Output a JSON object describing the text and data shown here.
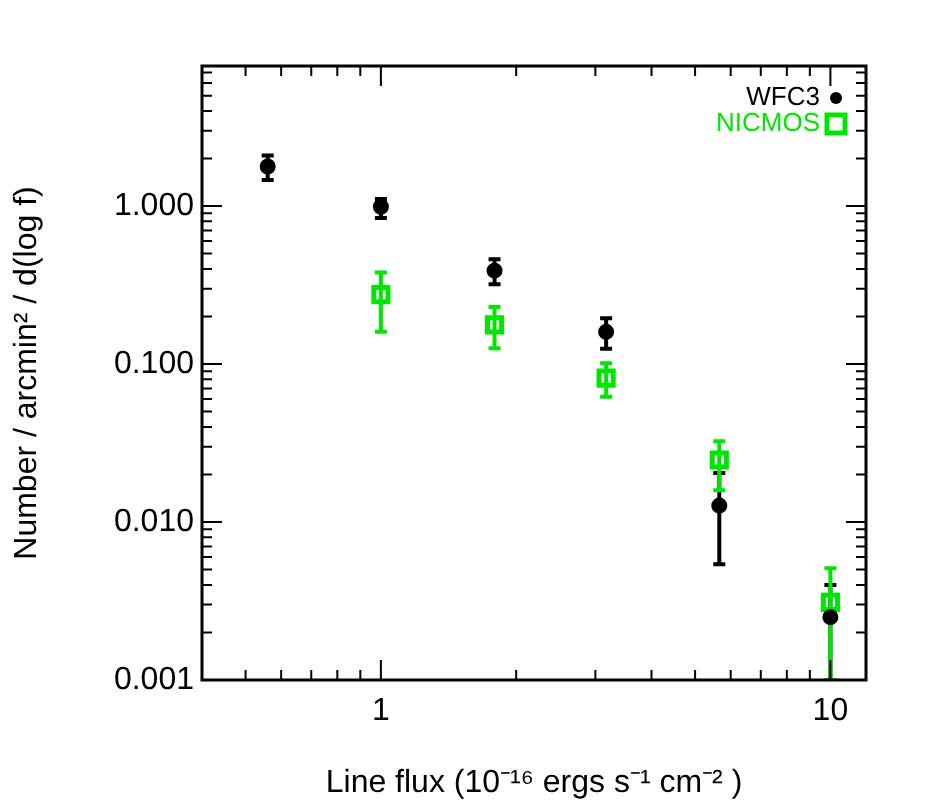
{
  "chart_data": {
    "type": "scatter",
    "xlabel": "Line flux (10⁻¹⁶ ergs s⁻¹ cm⁻² )",
    "ylabel": "Number / arcmin² / d(log f)",
    "log": "xy",
    "grid": false,
    "legend": "top right",
    "xlim": [
      0.4,
      12
    ],
    "ylim": [
      0.001,
      7.7
    ],
    "xticks": [
      {
        "value": 0.4,
        "label": null
      },
      {
        "value": 0.5,
        "label": null
      },
      {
        "value": 0.6,
        "label": null
      },
      {
        "value": 0.7,
        "label": null
      },
      {
        "value": 0.8,
        "label": null
      },
      {
        "value": 0.9,
        "label": null
      },
      1,
      {
        "value": 2,
        "label": null
      },
      {
        "value": 3,
        "label": null
      },
      {
        "value": 4,
        "label": null
      },
      {
        "value": 5,
        "label": null
      },
      {
        "value": 6,
        "label": null
      },
      {
        "value": 7,
        "label": null
      },
      {
        "value": 8,
        "label": null
      },
      {
        "value": 9,
        "label": null
      },
      10
    ],
    "yticks": [
      {
        "value": 0.001,
        "label": "0.001"
      },
      {
        "value": 0.002,
        "label": null
      },
      {
        "value": 0.003,
        "label": null
      },
      {
        "value": 0.004,
        "label": null
      },
      {
        "value": 0.005,
        "label": null
      },
      {
        "value": 0.006,
        "label": null
      },
      {
        "value": 0.007,
        "label": null
      },
      {
        "value": 0.008,
        "label": null
      },
      {
        "value": 0.009,
        "label": null
      },
      {
        "value": 0.01,
        "label": "0.010"
      },
      {
        "value": 0.02,
        "label": null
      },
      {
        "value": 0.03,
        "label": null
      },
      {
        "value": 0.04,
        "label": null
      },
      {
        "value": 0.05,
        "label": null
      },
      {
        "value": 0.06,
        "label": null
      },
      {
        "value": 0.07,
        "label": null
      },
      {
        "value": 0.08,
        "label": null
      },
      {
        "value": 0.09,
        "label": null
      },
      {
        "value": 0.1,
        "label": "0.100"
      },
      {
        "value": 0.2,
        "label": null
      },
      {
        "value": 0.3,
        "label": null
      },
      {
        "value": 0.4,
        "label": null
      },
      {
        "value": 0.5,
        "label": null
      },
      {
        "value": 0.6,
        "label": null
      },
      {
        "value": 0.7,
        "label": null
      },
      {
        "value": 0.8,
        "label": null
      },
      {
        "value": 0.9,
        "label": null
      },
      {
        "value": 1,
        "label": "1.000"
      },
      {
        "value": 2,
        "label": null
      },
      {
        "value": 3,
        "label": null
      },
      {
        "value": 4,
        "label": null
      },
      {
        "value": 5,
        "label": null
      },
      {
        "value": 6,
        "label": null
      },
      {
        "value": 7,
        "label": null
      }
    ],
    "series": [
      {
        "name": "WFC3",
        "color": "#000000",
        "marker": "circle",
        "x": [
          0.56,
          1.0,
          1.79,
          3.17,
          5.66,
          10.0
        ],
        "values": [
          1.78,
          0.99,
          0.39,
          0.16,
          0.0127,
          0.0025
        ],
        "errors": [
          [
            1.46,
            2.09
          ],
          [
            0.84,
            1.11
          ],
          [
            0.32,
            0.46
          ],
          [
            0.125,
            0.195
          ],
          [
            0.0054,
            0.0204
          ],
          [
            0.001,
            0.004
          ]
        ]
      },
      {
        "name": "NICMOS",
        "color": "#00e600",
        "marker": "square",
        "x": [
          1.0,
          1.79,
          3.17,
          5.66,
          10.0
        ],
        "values": [
          0.275,
          0.177,
          0.0815,
          0.0247,
          0.0031
        ],
        "errors": [
          [
            0.16,
            0.38
          ],
          [
            0.126,
            0.23
          ],
          [
            0.062,
            0.101
          ],
          [
            0.0159,
            0.0324
          ],
          [
            0.001,
            0.0051
          ]
        ]
      }
    ]
  }
}
